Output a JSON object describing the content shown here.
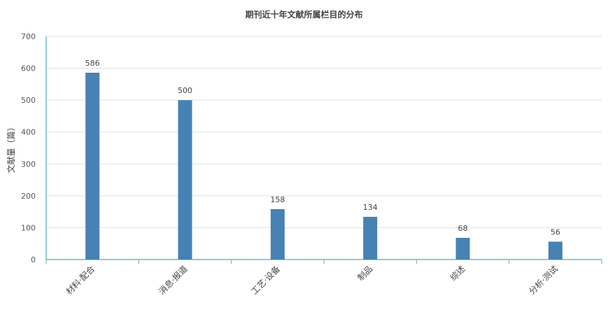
{
  "chart_data": {
    "type": "bar",
    "title": "期刊近十年文献所属栏目的分布",
    "xlabel": "",
    "ylabel": "文献量（篇）",
    "categories": [
      "材料·配合",
      "消息·报道",
      "工艺·设备",
      "制品",
      "综述",
      "分析·测试"
    ],
    "values": [
      586,
      500,
      158,
      134,
      68,
      56
    ],
    "ylim": [
      0,
      700
    ],
    "yticks": [
      0,
      100,
      200,
      300,
      400,
      500,
      600,
      700
    ],
    "grid": true,
    "bar_color": "#4682B4",
    "axis_color": "#1F9AA7",
    "data_labels": true
  }
}
